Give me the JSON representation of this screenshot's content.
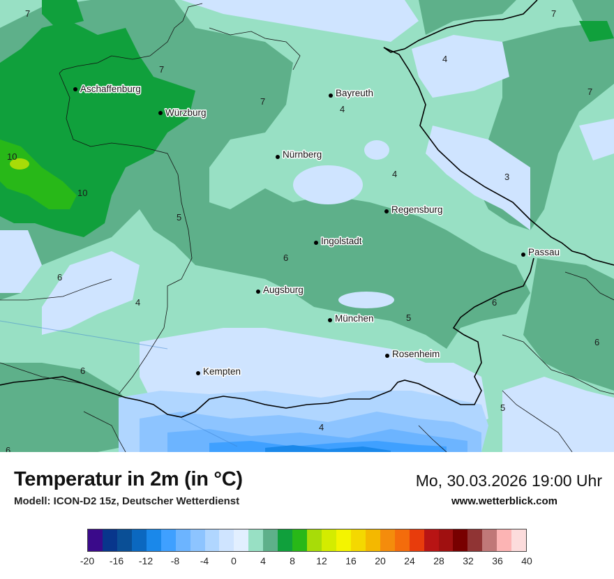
{
  "title": "Temperatur in 2m (in °C)",
  "subtitle": "Modell: ICON-D2 15z, Deutscher Wetterdienst",
  "datetime": "Mo, 30.03.2026 19:00 Uhr",
  "website": "www.wetterblick.com",
  "cities": [
    {
      "name": "Aschaffenburg"
    },
    {
      "name": "Würzburg"
    },
    {
      "name": "Bayreuth"
    },
    {
      "name": "Nürnberg"
    },
    {
      "name": "Regensburg"
    },
    {
      "name": "Ingolstadt"
    },
    {
      "name": "Passau"
    },
    {
      "name": "Augsburg"
    },
    {
      "name": "München"
    },
    {
      "name": "Rosenheim"
    },
    {
      "name": "Kempten"
    }
  ],
  "isolines": [
    "7",
    "7",
    "7",
    "7",
    "7",
    "10",
    "10",
    "4",
    "4",
    "3",
    "5",
    "6",
    "6",
    "4",
    "6",
    "5",
    "6",
    "5",
    "6",
    "4",
    "6"
  ],
  "legend": {
    "colors": [
      "#3a0a8a",
      "#08368c",
      "#0a4f96",
      "#0b68c0",
      "#1a88ea",
      "#3fa0ff",
      "#6cb4ff",
      "#8dc4ff",
      "#b0d6ff",
      "#cfe4ff",
      "#e2efff",
      "#98e0c4",
      "#5eb08a",
      "#10a03c",
      "#28b818",
      "#a8dc08",
      "#d4ec00",
      "#f4f400",
      "#f4d800",
      "#f4b800",
      "#f48c0c",
      "#f46c0c",
      "#e83c0c",
      "#b81414",
      "#a01010",
      "#780000",
      "#903434",
      "#c07878",
      "#fcb4b4",
      "#fcdcdc"
    ],
    "ticks": [
      "-20",
      "-16",
      "-12",
      "-8",
      "-4",
      "0",
      "4",
      "8",
      "12",
      "16",
      "20",
      "24",
      "28",
      "32",
      "36",
      "40"
    ]
  }
}
